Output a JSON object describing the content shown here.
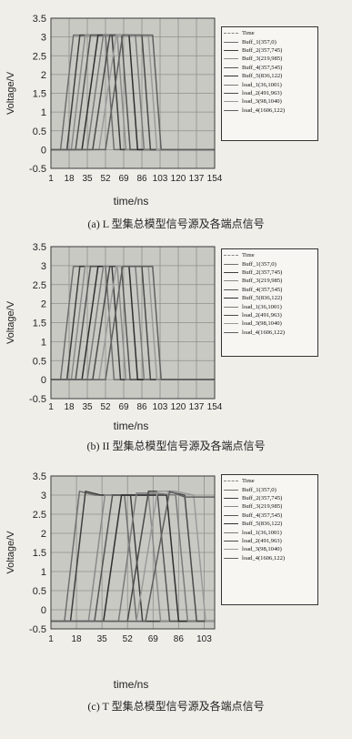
{
  "chart_data": [
    {
      "type": "line",
      "ylabel": "Voltage/V",
      "xlabel": "time/ns",
      "ylim": [
        -0.5,
        3.5
      ],
      "yticks": [
        "3.5",
        "3",
        "2.5",
        "2",
        "1.5",
        "1",
        "0.5",
        "0",
        "-0.5"
      ],
      "xticks": [
        "1",
        "18",
        "35",
        "52",
        "69",
        "86",
        "103",
        "120",
        "137",
        "154"
      ],
      "grid": true,
      "legend_position": "right",
      "legend": [
        "Time",
        "Buff_1(357,0)",
        "Buff_2(357,745)",
        "Buff_3(219,985)",
        "Buff_4(357,545)",
        "Buff_5(836,122)",
        "load_1(36,1001)",
        "load_2(491,963)",
        "load_3(98,1040)",
        "load_4(1606,122)"
      ],
      "series": [
        {
          "values": [
            [
              1,
              0
            ],
            [
              10,
              0
            ],
            [
              22,
              3.05
            ],
            [
              38,
              3.05
            ],
            [
              52,
              3.05
            ],
            [
              60,
              0
            ],
            [
              154,
              0
            ]
          ]
        },
        {
          "values": [
            [
              1,
              0
            ],
            [
              16,
              0
            ],
            [
              28,
              3.05
            ],
            [
              44,
              3.05
            ],
            [
              58,
              3.05
            ],
            [
              66,
              0
            ],
            [
              154,
              0
            ]
          ]
        },
        {
          "values": [
            [
              1,
              0
            ],
            [
              20,
              0
            ],
            [
              33,
              3.05
            ],
            [
              48,
              3.05
            ],
            [
              63,
              3.05
            ],
            [
              71,
              0
            ],
            [
              154,
              0
            ]
          ]
        },
        {
          "values": [
            [
              1,
              0
            ],
            [
              24,
              0
            ],
            [
              38,
              3.05
            ],
            [
              54,
              3.05
            ],
            [
              67,
              3.05
            ],
            [
              75,
              0
            ],
            [
              154,
              0
            ]
          ]
        },
        {
          "values": [
            [
              1,
              0
            ],
            [
              30,
              0
            ],
            [
              45,
              3.05
            ],
            [
              60,
              3.05
            ],
            [
              74,
              3.05
            ],
            [
              82,
              0
            ],
            [
              154,
              0
            ]
          ]
        },
        {
          "values": [
            [
              1,
              0
            ],
            [
              35,
              0
            ],
            [
              50,
              3.05
            ],
            [
              66,
              3.05
            ],
            [
              80,
              3.05
            ],
            [
              88,
              0
            ],
            [
              154,
              0
            ]
          ]
        },
        {
          "values": [
            [
              1,
              0
            ],
            [
              40,
              0
            ],
            [
              56,
              3.05
            ],
            [
              72,
              3.05
            ],
            [
              86,
              3.05
            ],
            [
              94,
              0
            ],
            [
              154,
              0
            ]
          ]
        },
        {
          "values": [
            [
              1,
              0
            ],
            [
              46,
              0
            ],
            [
              62,
              3.05
            ],
            [
              78,
              3.05
            ],
            [
              92,
              3.05
            ],
            [
              100,
              0
            ],
            [
              154,
              0
            ]
          ]
        },
        {
          "values": [
            [
              1,
              0
            ],
            [
              52,
              0
            ],
            [
              68,
              3.05
            ],
            [
              86,
              3.05
            ],
            [
              96,
              3.05
            ],
            [
              104,
              0
            ],
            [
              154,
              0
            ]
          ]
        }
      ],
      "caption": "(a) L 型集总模型信号源及各端点信号"
    },
    {
      "type": "line",
      "ylabel": "Voltage/V",
      "xlabel": "time/ns",
      "ylim": [
        -0.5,
        3.5
      ],
      "yticks": [
        "3.5",
        "3",
        "2.5",
        "2",
        "1.5",
        "1",
        "0.5",
        "0",
        "-0.5"
      ],
      "xticks": [
        "1",
        "18",
        "35",
        "52",
        "69",
        "86",
        "103",
        "120",
        "137",
        "154"
      ],
      "grid": true,
      "legend_position": "right",
      "legend": [
        "Time",
        "Buff_1(357,0)",
        "Buff_2(357,745)",
        "Buff_3(219,985)",
        "Buff_4(357,545)",
        "Buff_5(836,122)",
        "load_1(36,1001)",
        "load_2(491,963)",
        "load_3(98,1040)",
        "load_4(1606,122)"
      ],
      "series": [
        {
          "values": [
            [
              1,
              0
            ],
            [
              10,
              0
            ],
            [
              22,
              2.98
            ],
            [
              38,
              2.98
            ],
            [
              52,
              2.98
            ],
            [
              60,
              0
            ],
            [
              154,
              0
            ]
          ]
        },
        {
          "values": [
            [
              1,
              0
            ],
            [
              16,
              0
            ],
            [
              28,
              2.98
            ],
            [
              44,
              2.98
            ],
            [
              58,
              2.98
            ],
            [
              66,
              0
            ],
            [
              154,
              0
            ]
          ]
        },
        {
          "values": [
            [
              1,
              0
            ],
            [
              20,
              0
            ],
            [
              33,
              2.98
            ],
            [
              48,
              2.98
            ],
            [
              63,
              2.98
            ],
            [
              71,
              0
            ],
            [
              154,
              0
            ]
          ]
        },
        {
          "values": [
            [
              1,
              0
            ],
            [
              24,
              0
            ],
            [
              38,
              2.98
            ],
            [
              54,
              2.98
            ],
            [
              67,
              2.98
            ],
            [
              75,
              0
            ],
            [
              154,
              0
            ]
          ]
        },
        {
          "values": [
            [
              1,
              0
            ],
            [
              30,
              0
            ],
            [
              45,
              2.98
            ],
            [
              60,
              2.98
            ],
            [
              74,
              2.98
            ],
            [
              82,
              0
            ],
            [
              154,
              0
            ]
          ]
        },
        {
          "values": [
            [
              1,
              0
            ],
            [
              35,
              0
            ],
            [
              50,
              2.98
            ],
            [
              66,
              2.98
            ],
            [
              80,
              2.98
            ],
            [
              88,
              0
            ],
            [
              154,
              0
            ]
          ]
        },
        {
          "values": [
            [
              1,
              0
            ],
            [
              40,
              0
            ],
            [
              56,
              2.98
            ],
            [
              72,
              2.98
            ],
            [
              86,
              2.98
            ],
            [
              94,
              0
            ],
            [
              154,
              0
            ]
          ]
        },
        {
          "values": [
            [
              1,
              0
            ],
            [
              46,
              0
            ],
            [
              62,
              2.98
            ],
            [
              78,
              2.98
            ],
            [
              92,
              2.98
            ],
            [
              100,
              0
            ],
            [
              154,
              0
            ]
          ]
        },
        {
          "values": [
            [
              1,
              0
            ],
            [
              52,
              0
            ],
            [
              68,
              2.98
            ],
            [
              86,
              2.98
            ],
            [
              96,
              2.98
            ],
            [
              104,
              0
            ],
            [
              154,
              0
            ]
          ]
        }
      ],
      "caption": "(b) II 型集总模型信号源及各端点信号"
    },
    {
      "type": "line",
      "ylabel": "Voltage/V",
      "xlabel": "time/ns",
      "ylim": [
        -0.5,
        3.5
      ],
      "xlim": [
        1,
        110
      ],
      "yticks": [
        "3.5",
        "3",
        "2.5",
        "2",
        "1.5",
        "1",
        "0.5",
        "0",
        "-0.5"
      ],
      "xticks": [
        "1",
        "18",
        "35",
        "52",
        "69",
        "86",
        "103"
      ],
      "grid": true,
      "legend_position": "right",
      "legend": [
        "Time",
        "Buff_1(357,0)",
        "Buff_2(357,745)",
        "Buff_3(219,985)",
        "Buff_4(357,545)",
        "Buff_5(836,122)",
        "load_1(36,1001)",
        "load_2(491,963)",
        "load_3(98,1040)",
        "load_4(1606,122)"
      ],
      "series": [
        {
          "values": [
            [
              1,
              -0.3
            ],
            [
              10,
              -0.3
            ],
            [
              20,
              3.1
            ],
            [
              30,
              3.0
            ],
            [
              50,
              3.0
            ],
            [
              58,
              -0.3
            ],
            [
              110,
              -0.3
            ]
          ]
        },
        {
          "values": [
            [
              1,
              -0.3
            ],
            [
              14,
              -0.3
            ],
            [
              24,
              3.1
            ],
            [
              34,
              3.0
            ],
            [
              54,
              3.0
            ],
            [
              62,
              -0.3
            ],
            [
              110,
              -0.3
            ]
          ]
        },
        {
          "values": [
            [
              1,
              -0.3
            ],
            [
              26,
              -0.3
            ],
            [
              37,
              3.0
            ],
            [
              46,
              3.0
            ],
            [
              66,
              3.0
            ],
            [
              74,
              -0.3
            ],
            [
              110,
              -0.3
            ]
          ]
        },
        {
          "values": [
            [
              1,
              -0.3
            ],
            [
              30,
              -0.3
            ],
            [
              42,
              3.0
            ],
            [
              52,
              3.0
            ],
            [
              72,
              3.0
            ],
            [
              80,
              -0.3
            ],
            [
              110,
              -0.3
            ]
          ]
        },
        {
          "values": [
            [
              1,
              -0.3
            ],
            [
              36,
              -0.3
            ],
            [
              48,
              3.0
            ],
            [
              58,
              3.0
            ],
            [
              78,
              3.0
            ],
            [
              86,
              -0.3
            ],
            [
              110,
              -0.3
            ]
          ]
        },
        {
          "values": [
            [
              1,
              -0.3
            ],
            [
              46,
              -0.3
            ],
            [
              58,
              3.05
            ],
            [
              70,
              3.05
            ],
            [
              84,
              3.0
            ],
            [
              92,
              -0.3
            ],
            [
              110,
              -0.3
            ]
          ]
        },
        {
          "values": [
            [
              1,
              -0.3
            ],
            [
              52,
              -0.3
            ],
            [
              66,
              3.1
            ],
            [
              78,
              3.1
            ],
            [
              90,
              3.0
            ],
            [
              98,
              -0.3
            ],
            [
              110,
              -0.3
            ]
          ]
        },
        {
          "values": [
            [
              1,
              -0.3
            ],
            [
              58,
              -0.3
            ],
            [
              72,
              3.1
            ],
            [
              84,
              3.1
            ],
            [
              96,
              3.0
            ],
            [
              104,
              -0.3
            ],
            [
              110,
              -0.3
            ]
          ]
        },
        {
          "values": [
            [
              1,
              -0.3
            ],
            [
              64,
              -0.3
            ],
            [
              80,
              3.1
            ],
            [
              90,
              2.95
            ],
            [
              110,
              2.95
            ]
          ]
        }
      ],
      "caption": "(c) T 型集总模型信号源及各端点信号"
    }
  ]
}
